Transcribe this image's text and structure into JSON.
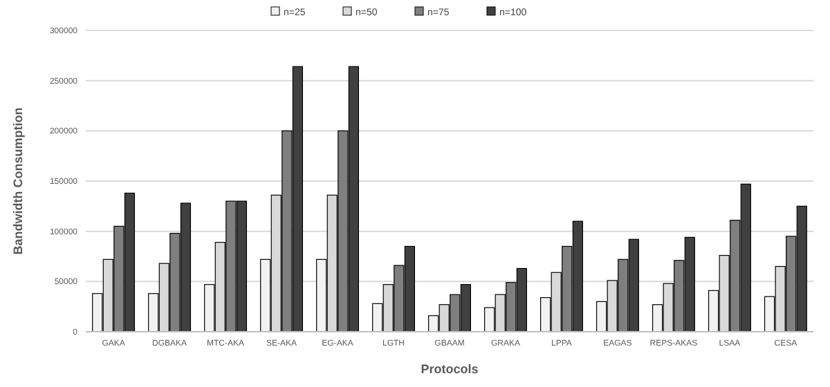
{
  "chart_data": {
    "type": "bar",
    "xlabel": "Protocols",
    "ylabel": "Bandwidth Consumption",
    "categories": [
      "GAKA",
      "DGBAKA",
      "MTC-AKA",
      "SE-AKA",
      "EG-AKA",
      "LGTH",
      "GBAAM",
      "GRAKA",
      "LPPA",
      "EAGAS",
      "REPS-AKAS",
      "LSAA",
      "CESA"
    ],
    "series": [
      {
        "name": "n=25",
        "color": "#f2f2f2",
        "values": [
          38000,
          38000,
          47000,
          72000,
          72000,
          28000,
          16000,
          24000,
          34000,
          30000,
          27000,
          41000,
          35000
        ]
      },
      {
        "name": "n=50",
        "color": "#d9d9d9",
        "values": [
          72000,
          68000,
          89000,
          136000,
          136000,
          47000,
          27000,
          37000,
          59000,
          51000,
          48000,
          76000,
          65000
        ]
      },
      {
        "name": "n=75",
        "color": "#7f7f7f",
        "values": [
          105000,
          98000,
          130000,
          200000,
          200000,
          66000,
          37000,
          49000,
          85000,
          72000,
          71000,
          111000,
          95000
        ]
      },
      {
        "name": "n=100",
        "color": "#404040",
        "values": [
          138000,
          128000,
          130000,
          264000,
          264000,
          85000,
          47000,
          63000,
          110000,
          92000,
          94000,
          147000,
          125000
        ]
      }
    ],
    "ylim": [
      0,
      300000
    ],
    "yticks": [
      0,
      50000,
      100000,
      150000,
      200000,
      250000,
      300000
    ],
    "grid": "y",
    "legend": "top"
  }
}
